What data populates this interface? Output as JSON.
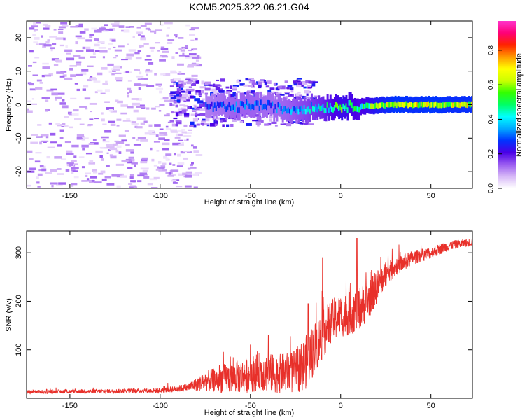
{
  "figure_title": "KOM5.2025.322.06.21.G04",
  "chart_data": [
    {
      "type": "heatmap",
      "title": "KOM5.2025.322.06.21.G04",
      "xlabel": "Height of straight line (km)",
      "ylabel": "Frequency (Hz)",
      "xlim": [
        -174,
        73
      ],
      "ylim": [
        -25,
        25
      ],
      "xticks": [
        -150,
        -100,
        -50,
        0,
        50
      ],
      "yticks": [
        -20,
        -10,
        0,
        10,
        20
      ],
      "xtick_labels": [
        "-150",
        "-100",
        "-50",
        "0",
        "50"
      ],
      "ytick_labels": [
        "-20",
        "-10",
        "0",
        "10",
        "20"
      ],
      "colorbar": {
        "label": "Normalized spectral amplitude",
        "range": [
          0,
          0.97
        ],
        "ticks": [
          0.0,
          0.2,
          0.4,
          0.6,
          0.8
        ],
        "tick_labels": [
          "0.0",
          "0.2",
          "0.4",
          "0.6",
          "0.8"
        ],
        "colormap": [
          "#ffffff",
          "#d7b8f7",
          "#9a5cf0",
          "#4a00e6",
          "#0033ff",
          "#00aaff",
          "#00ffff",
          "#00ff66",
          "#33ff00",
          "#ccff00",
          "#ffff00",
          "#ff9900",
          "#ff2200",
          "#ff0077",
          "#ff33cc"
        ]
      },
      "main_trace": {
        "description": "strong narrow line near 0 Hz",
        "x_range": [
          -75,
          73
        ],
        "points": [
          {
            "x": -75,
            "f": -0.5,
            "amp": 0.25
          },
          {
            "x": -60,
            "f": -1.0,
            "amp": 0.3
          },
          {
            "x": -50,
            "f": 0.0,
            "amp": 0.3
          },
          {
            "x": -40,
            "f": -0.5,
            "amp": 0.28
          },
          {
            "x": -30,
            "f": -1.5,
            "amp": 0.3
          },
          {
            "x": -20,
            "f": -1.0,
            "amp": 0.35
          },
          {
            "x": -10,
            "f": -0.8,
            "amp": 0.4
          },
          {
            "x": 0,
            "f": -0.5,
            "amp": 0.5
          },
          {
            "x": 10,
            "f": -0.5,
            "amp": 0.45
          },
          {
            "x": 20,
            "f": -0.2,
            "amp": 0.55
          },
          {
            "x": 30,
            "f": 0.0,
            "amp": 0.62
          },
          {
            "x": 40,
            "f": 0.0,
            "amp": 0.6
          },
          {
            "x": 50,
            "f": 0.0,
            "amp": 0.62
          },
          {
            "x": 60,
            "f": 0.0,
            "amp": 0.6
          },
          {
            "x": 73,
            "f": 0.0,
            "amp": 0.6
          }
        ]
      }
    },
    {
      "type": "line",
      "xlabel": "Height of straight line (km)",
      "ylabel": "SNR (v/v)",
      "xlim": [
        -174,
        73
      ],
      "ylim": [
        0,
        345
      ],
      "xticks": [
        -150,
        -100,
        -50,
        0,
        50
      ],
      "yticks": [
        100,
        200,
        300
      ],
      "xtick_labels": [
        "-150",
        "-100",
        "-50",
        "0",
        "50"
      ],
      "ytick_labels": [
        "100",
        "200",
        "300"
      ],
      "line_color": "#e8302a",
      "series": [
        {
          "name": "SNR",
          "x": [
            -174,
            -150,
            -125,
            -100,
            -85,
            -75,
            -65,
            -55,
            -45,
            -35,
            -25,
            -20,
            -15,
            -10,
            -5,
            0,
            5,
            10,
            15,
            20,
            25,
            30,
            40,
            50,
            60,
            73
          ],
          "values": [
            13,
            14,
            15,
            16,
            22,
            35,
            40,
            45,
            55,
            50,
            55,
            70,
            100,
            130,
            160,
            170,
            175,
            185,
            200,
            230,
            255,
            270,
            290,
            300,
            315,
            322
          ],
          "noise": [
            4,
            4,
            4,
            5,
            8,
            20,
            30,
            35,
            40,
            40,
            45,
            55,
            55,
            50,
            45,
            45,
            45,
            45,
            40,
            35,
            25,
            20,
            15,
            12,
            10,
            8
          ]
        }
      ],
      "spikes": [
        {
          "x": -65,
          "y": 95
        },
        {
          "x": -50,
          "y": 110
        },
        {
          "x": -40,
          "y": 130
        },
        {
          "x": -18,
          "y": 195
        },
        {
          "x": -10,
          "y": 290
        },
        {
          "x": 9,
          "y": 330
        }
      ]
    }
  ]
}
